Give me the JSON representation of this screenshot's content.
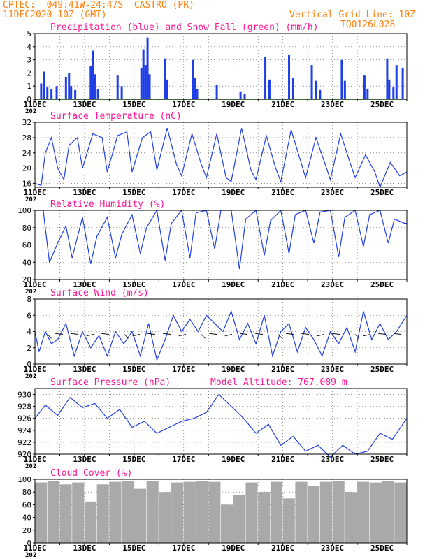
{
  "header": {
    "left_line1": "CPTEC:  049:41W-24:47S  CASTRO (PR)",
    "left_line2": "11DEC2020 10Z (GMT)",
    "right_line1": "Vertical Grid Line: 10Z",
    "right_line2": "TQ0126L028"
  },
  "colors": {
    "header": "#ff7f0e",
    "panel_title": "#ff1493",
    "series": "#1f3fe6",
    "snow": "#1fa31f",
    "cloud": "#a9a9a9",
    "arrow": "#000000"
  },
  "x_axis": {
    "start": "11DEC2020 10Z",
    "end": "26DEC2020 10Z",
    "tick_labels": [
      "11DEC",
      "13DEC",
      "15DEC",
      "17DEC",
      "19DEC",
      "21DEC",
      "23DEC",
      "25DEC"
    ],
    "year_stub": "202"
  },
  "panels": {
    "precip": {
      "title": "Precipitation (blue) and Snow Fall (green) (mm/h)",
      "yticks": [
        "0",
        "1",
        "2",
        "3",
        "4",
        "5"
      ]
    },
    "temp": {
      "title": "Surface Temperature (nC)",
      "yticks": [
        "16",
        "20",
        "24",
        "28",
        "32"
      ]
    },
    "rh": {
      "title": "Relative Humidity (%)",
      "yticks": [
        "20",
        "40",
        "60",
        "80",
        "100"
      ]
    },
    "wind": {
      "title": "Surface Wind (m/s)",
      "yticks": [
        "0",
        "2",
        "4",
        "6",
        "8"
      ]
    },
    "pressure": {
      "title": "Surface Pressure (hPa)",
      "extra": "Model Altitude: 767.089 m",
      "yticks": [
        "920",
        "922",
        "924",
        "926",
        "928",
        "930"
      ]
    },
    "cloud": {
      "title": "Cloud Cover (%)",
      "yticks": [
        "0",
        "20",
        "40",
        "60",
        "80",
        "100"
      ]
    }
  },
  "chart_data": [
    {
      "type": "bar",
      "title": "Precipitation (blue) and Snow Fall (green) (mm/h)",
      "ylim": [
        0,
        5
      ],
      "grid": true,
      "series": [
        {
          "name": "Precipitation",
          "x": [
            "11DEC 16Z",
            "11DEC 19Z",
            "11DEC 22Z",
            "12DEC 02Z",
            "12DEC 07Z",
            "12DEC 16Z",
            "12DEC 19Z",
            "12DEC 21Z",
            "13DEC 01Z",
            "13DEC 16Z",
            "13DEC 18Z",
            "13DEC 20Z",
            "13DEC 23Z",
            "14DEC 18Z",
            "14DEC 22Z",
            "15DEC 17Z",
            "15DEC 19Z",
            "15DEC 21Z",
            "15DEC 23Z",
            "16DEC 01Z",
            "16DEC 16Z",
            "16DEC 18Z",
            "17DEC 19Z",
            "17DEC 21Z",
            "17DEC 23Z",
            "18DEC 18Z",
            "19DEC 17Z",
            "19DEC 21Z",
            "20DEC 17Z",
            "20DEC 21Z",
            "21DEC 16Z",
            "21DEC 20Z",
            "22DEC 14Z",
            "22DEC 18Z",
            "22DEC 22Z",
            "23DEC 19Z",
            "23DEC 22Z",
            "24DEC 17Z",
            "24DEC 20Z",
            "25DEC 15Z",
            "25DEC 17Z",
            "25DEC 21Z",
            "26DEC 00Z",
            "26DEC 06Z"
          ],
          "values": [
            1.2,
            2.1,
            0.9,
            0.8,
            1.0,
            1.7,
            2.0,
            1.0,
            0.7,
            2.5,
            3.7,
            1.9,
            0.8,
            1.8,
            1.0,
            2.4,
            3.8,
            2.6,
            4.7,
            1.9,
            3.1,
            1.5,
            3.0,
            1.6,
            0.8,
            1.1,
            0.6,
            0.4,
            3.2,
            1.5,
            3.4,
            1.6,
            2.6,
            1.4,
            0.7,
            3.0,
            1.4,
            1.8,
            0.8,
            3.1,
            1.5,
            0.9,
            2.6,
            2.4
          ]
        },
        {
          "name": "Snow Fall",
          "x": [
            "11DEC 10Z",
            "26DEC 10Z"
          ],
          "values": [
            0,
            0
          ]
        }
      ]
    },
    {
      "type": "line",
      "title": "Surface Temperature (nC)",
      "ylim": [
        15,
        32
      ],
      "grid": true,
      "series": [
        {
          "name": "Surface Temperature",
          "x": [
            "11DEC 10Z",
            "11DEC 16Z",
            "11DEC 20Z",
            "12DEC 02Z",
            "12DEC 08Z",
            "12DEC 14Z",
            "12DEC 19Z",
            "13DEC 03Z",
            "13DEC 08Z",
            "13DEC 18Z",
            "14DEC 03Z",
            "14DEC 08Z",
            "14DEC 18Z",
            "15DEC 03Z",
            "15DEC 08Z",
            "15DEC 18Z",
            "16DEC 02Z",
            "16DEC 08Z",
            "16DEC 18Z",
            "17DEC 03Z",
            "17DEC 08Z",
            "17DEC 18Z",
            "18DEC 03Z",
            "18DEC 08Z",
            "18DEC 18Z",
            "19DEC 03Z",
            "19DEC 08Z",
            "19DEC 18Z",
            "20DEC 03Z",
            "20DEC 08Z",
            "20DEC 18Z",
            "21DEC 03Z",
            "21DEC 08Z",
            "21DEC 18Z",
            "22DEC 03Z",
            "22DEC 08Z",
            "22DEC 18Z",
            "23DEC 03Z",
            "23DEC 08Z",
            "23DEC 18Z",
            "24DEC 03Z",
            "24DEC 08Z",
            "24DEC 18Z",
            "25DEC 03Z",
            "25DEC 08Z",
            "25DEC 18Z",
            "26DEC 03Z",
            "26DEC 10Z"
          ],
          "values": [
            16,
            15.5,
            24,
            28,
            20,
            17,
            26,
            28,
            20,
            29,
            28,
            19,
            28.5,
            29.5,
            19,
            28,
            29.5,
            19.5,
            30.5,
            21,
            18,
            29,
            21,
            17.5,
            29,
            17.5,
            16.5,
            30.5,
            19.5,
            17,
            28.5,
            20,
            16.5,
            30,
            22,
            17.5,
            28,
            21,
            17,
            29,
            21.5,
            17.5,
            23.5,
            19,
            15,
            21.5,
            18,
            19
          ]
        }
      ]
    },
    {
      "type": "line",
      "title": "Relative Humidity (%)",
      "ylim": [
        20,
        100
      ],
      "grid": true,
      "series": [
        {
          "name": "Relative Humidity",
          "x": [
            "11DEC 10Z",
            "11DEC 18Z",
            "12DEC 00Z",
            "12DEC 08Z",
            "12DEC 16Z",
            "12DEC 22Z",
            "13DEC 08Z",
            "13DEC 16Z",
            "13DEC 22Z",
            "14DEC 08Z",
            "14DEC 16Z",
            "14DEC 22Z",
            "15DEC 08Z",
            "15DEC 16Z",
            "15DEC 22Z",
            "16DEC 08Z",
            "16DEC 16Z",
            "16DEC 22Z",
            "17DEC 08Z",
            "17DEC 16Z",
            "17DEC 22Z",
            "18DEC 08Z",
            "18DEC 16Z",
            "18DEC 22Z",
            "19DEC 08Z",
            "19DEC 16Z",
            "19DEC 22Z",
            "20DEC 08Z",
            "20DEC 16Z",
            "20DEC 22Z",
            "21DEC 08Z",
            "21DEC 16Z",
            "21DEC 22Z",
            "22DEC 08Z",
            "22DEC 16Z",
            "22DEC 22Z",
            "23DEC 08Z",
            "23DEC 16Z",
            "23DEC 22Z",
            "24DEC 08Z",
            "24DEC 16Z",
            "24DEC 22Z",
            "25DEC 08Z",
            "25DEC 16Z",
            "25DEC 22Z",
            "26DEC 08Z",
            "26DEC 10Z"
          ],
          "values": [
            100,
            100,
            40,
            62,
            82,
            45,
            92,
            38,
            70,
            92,
            45,
            72,
            95,
            50,
            80,
            100,
            42,
            85,
            100,
            45,
            97,
            100,
            55,
            100,
            100,
            32,
            90,
            100,
            48,
            88,
            100,
            50,
            95,
            100,
            62,
            98,
            100,
            46,
            92,
            100,
            58,
            95,
            100,
            62,
            90,
            85,
            85
          ]
        }
      ]
    },
    {
      "type": "line",
      "title": "Surface Wind (m/s)",
      "ylim": [
        0,
        8
      ],
      "grid": true,
      "series": [
        {
          "name": "Wind Speed",
          "x": [
            "11DEC 10Z",
            "11DEC 14Z",
            "11DEC 20Z",
            "12DEC 02Z",
            "12DEC 08Z",
            "12DEC 16Z",
            "13DEC 00Z",
            "13DEC 08Z",
            "13DEC 16Z",
            "14DEC 00Z",
            "14DEC 08Z",
            "14DEC 16Z",
            "15DEC 00Z",
            "15DEC 08Z",
            "15DEC 16Z",
            "16DEC 00Z",
            "16DEC 08Z",
            "16DEC 16Z",
            "17DEC 00Z",
            "17DEC 08Z",
            "17DEC 16Z",
            "18DEC 00Z",
            "18DEC 08Z",
            "18DEC 16Z",
            "19DEC 00Z",
            "19DEC 08Z",
            "19DEC 16Z",
            "20DEC 00Z",
            "20DEC 08Z",
            "20DEC 16Z",
            "21DEC 00Z",
            "21DEC 08Z",
            "21DEC 16Z",
            "22DEC 00Z",
            "22DEC 08Z",
            "22DEC 16Z",
            "23DEC 00Z",
            "23DEC 08Z",
            "23DEC 16Z",
            "24DEC 00Z",
            "24DEC 08Z",
            "24DEC 16Z",
            "25DEC 00Z",
            "25DEC 08Z",
            "25DEC 16Z",
            "26DEC 00Z",
            "26DEC 10Z"
          ],
          "values": [
            4,
            1.5,
            4,
            2.5,
            3,
            5,
            1,
            4,
            2,
            3.5,
            1,
            4,
            2.5,
            4,
            1,
            5,
            0.5,
            3,
            6,
            4,
            5.5,
            4,
            6,
            5,
            4,
            6.5,
            3,
            5,
            2.5,
            6,
            1,
            4,
            5,
            1.5,
            4.5,
            3,
            1,
            4,
            2.5,
            4.5,
            1.5,
            6.5,
            3,
            5,
            3,
            4,
            6
          ]
        }
      ]
    },
    {
      "type": "line",
      "title": "Surface Pressure (hPa)",
      "ylim": [
        920,
        931
      ],
      "grid": true,
      "series": [
        {
          "name": "Surface Pressure",
          "x": [
            "11DEC 10Z",
            "11DEC 20Z",
            "12DEC 08Z",
            "12DEC 20Z",
            "13DEC 08Z",
            "13DEC 20Z",
            "14DEC 08Z",
            "14DEC 20Z",
            "15DEC 08Z",
            "15DEC 20Z",
            "16DEC 08Z",
            "16DEC 20Z",
            "17DEC 08Z",
            "17DEC 20Z",
            "18DEC 08Z",
            "18DEC 20Z",
            "19DEC 08Z",
            "19DEC 20Z",
            "20DEC 08Z",
            "20DEC 20Z",
            "21DEC 08Z",
            "21DEC 20Z",
            "22DEC 08Z",
            "22DEC 20Z",
            "23DEC 08Z",
            "23DEC 20Z",
            "24DEC 08Z",
            "24DEC 20Z",
            "25DEC 08Z",
            "25DEC 20Z",
            "26DEC 10Z"
          ],
          "values": [
            926,
            928.2,
            926.5,
            929.5,
            927.8,
            928.5,
            926,
            927.5,
            924.5,
            925.5,
            923.5,
            924.5,
            925.5,
            926,
            927,
            930,
            928,
            926,
            923.5,
            925,
            921.5,
            923,
            920.5,
            921.5,
            919.5,
            921.5,
            920,
            920.5,
            923.5,
            922.5,
            926
          ]
        }
      ]
    },
    {
      "type": "bar",
      "title": "Cloud Cover (%)",
      "ylim": [
        0,
        100
      ],
      "grid": true,
      "series": [
        {
          "name": "Cloud Cover",
          "x": [
            "11DEC 10Z",
            "11DEC 22Z",
            "12DEC 10Z",
            "12DEC 22Z",
            "13DEC 10Z",
            "13DEC 22Z",
            "14DEC 10Z",
            "14DEC 22Z",
            "15DEC 10Z",
            "15DEC 22Z",
            "16DEC 10Z",
            "16DEC 22Z",
            "17DEC 10Z",
            "17DEC 22Z",
            "18DEC 10Z",
            "18DEC 22Z",
            "19DEC 10Z",
            "19DEC 22Z",
            "20DEC 10Z",
            "20DEC 22Z",
            "21DEC 10Z",
            "21DEC 22Z",
            "22DEC 10Z",
            "22DEC 22Z",
            "23DEC 10Z",
            "23DEC 22Z",
            "24DEC 10Z",
            "24DEC 22Z",
            "25DEC 10Z",
            "25DEC 22Z",
            "26DEC 10Z"
          ],
          "values": [
            95,
            97,
            92,
            95,
            65,
            92,
            96,
            97,
            85,
            97,
            80,
            95,
            96,
            97,
            96,
            60,
            75,
            95,
            80,
            96,
            70,
            96,
            90,
            96,
            97,
            80,
            96,
            95,
            97,
            95,
            97
          ]
        }
      ]
    }
  ]
}
